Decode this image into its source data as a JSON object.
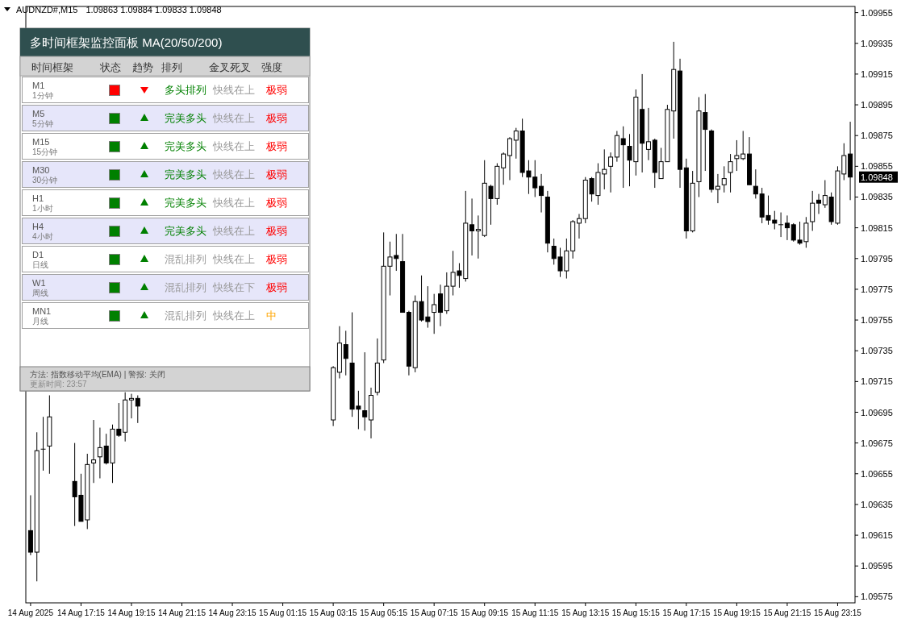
{
  "chart_data": {
    "type": "candlestick",
    "title": "AUDNZD#,M15",
    "subtitle": "1.09863 1.09884 1.09833 1.09848",
    "categories": [
      "14 Aug 2025",
      null,
      null,
      null,
      null,
      null,
      null,
      null,
      "14 Aug 17:15",
      null,
      null,
      null,
      null,
      null,
      null,
      null,
      "14 Aug 19:15",
      null,
      null,
      null,
      null,
      null,
      null,
      null,
      "14 Aug 21:15",
      null,
      null,
      null,
      null,
      null,
      null,
      null,
      "14 Aug 23:15",
      null,
      null,
      null,
      null,
      null,
      null,
      null,
      "15 Aug 01:15",
      null,
      null,
      null,
      null,
      null,
      null,
      null,
      "15 Aug 03:15",
      null,
      null,
      null,
      null,
      null,
      null,
      null,
      "15 Aug 05:15",
      null,
      null,
      null,
      null,
      null,
      null,
      null,
      "15 Aug 07:15",
      null,
      null,
      null,
      null,
      null,
      null,
      null,
      "15 Aug 09:15",
      null,
      null,
      null,
      null,
      null,
      null,
      null,
      "15 Aug 11:15",
      null,
      null,
      null,
      null,
      null,
      null,
      null,
      "15 Aug 13:15",
      null,
      null,
      null,
      null,
      null,
      null,
      null,
      "15 Aug 15:15",
      null,
      null,
      null,
      null,
      null,
      null,
      null,
      "15 Aug 17:15",
      null,
      null,
      null,
      null,
      null,
      null,
      null,
      "15 Aug 19:15",
      null,
      null,
      null,
      null,
      null,
      null,
      null,
      "15 Aug 21:15",
      null,
      null,
      null,
      null,
      null,
      null,
      null,
      "15 Aug 23:15",
      null,
      null
    ],
    "ohlc": [
      [
        1.09618,
        1.09641,
        1.09602,
        1.09604
      ],
      [
        1.09604,
        1.09682,
        1.09585,
        1.0967
      ],
      [
        1.09671,
        1.09692,
        1.09657,
        1.09671
      ],
      [
        1.09673,
        1.09706,
        1.09655,
        1.09692
      ],
      null,
      null,
      null,
      [
        1.0965,
        1.09675,
        1.09621,
        1.0964
      ],
      [
        1.09641,
        1.09655,
        1.09624,
        1.09624
      ],
      [
        1.09625,
        1.09668,
        1.09619,
        1.09661
      ],
      [
        1.09662,
        1.0969,
        1.09649,
        1.09664
      ],
      [
        1.09666,
        1.09685,
        1.09652,
        1.09672
      ],
      [
        1.09673,
        1.09681,
        1.09661,
        1.09662
      ],
      [
        1.09662,
        1.09687,
        1.09649,
        1.09684
      ],
      [
        1.09684,
        1.09701,
        1.09679,
        1.0968
      ],
      [
        1.09682,
        1.09708,
        1.09676,
        1.09703
      ],
      [
        1.09703,
        1.09707,
        1.09691,
        1.09704
      ],
      [
        1.09704,
        1.09706,
        1.09688,
        1.09699
      ],
      null,
      null,
      null,
      null,
      null,
      null,
      null,
      null,
      null,
      null,
      null,
      null,
      null,
      null,
      null,
      null,
      null,
      null,
      null,
      null,
      null,
      null,
      null,
      null,
      null,
      null,
      null,
      null,
      null,
      null,
      [
        1.0969,
        1.09725,
        1.09686,
        1.09724
      ],
      [
        1.09721,
        1.09751,
        1.09717,
        1.0974
      ],
      [
        1.09739,
        1.09748,
        1.09719,
        1.0973
      ],
      [
        1.09727,
        1.0976,
        1.09692,
        1.09697
      ],
      [
        1.09699,
        1.09709,
        1.09684,
        1.09697
      ],
      [
        1.09696,
        1.09734,
        1.09683,
        1.09692
      ],
      [
        1.0969,
        1.09711,
        1.09678,
        1.09706
      ],
      [
        1.09708,
        1.09743,
        1.09706,
        1.09727
      ],
      [
        1.09729,
        1.09812,
        1.09727,
        1.0979
      ],
      [
        1.0979,
        1.09806,
        1.09771,
        1.09796
      ],
      [
        1.09797,
        1.09811,
        1.09787,
        1.09795
      ],
      [
        1.09793,
        1.09811,
        1.0976,
        1.0976
      ],
      [
        1.0976,
        1.09761,
        1.09719,
        1.09725
      ],
      [
        1.09724,
        1.09771,
        1.09721,
        1.09767
      ],
      [
        1.09767,
        1.09784,
        1.09754,
        1.09755
      ],
      [
        1.09757,
        1.09777,
        1.0975,
        1.09754
      ],
      [
        1.0976,
        1.09772,
        1.09746,
        1.09765
      ],
      [
        1.09772,
        1.09778,
        1.09751,
        1.0976
      ],
      [
        1.09761,
        1.09786,
        1.09759,
        1.09777
      ],
      [
        1.09777,
        1.098,
        1.09771,
        1.09786
      ],
      [
        1.09787,
        1.09792,
        1.09776,
        1.09784
      ],
      [
        1.09782,
        1.09839,
        1.0978,
        1.09818
      ],
      [
        1.09817,
        1.09834,
        1.09797,
        1.09813
      ],
      [
        1.09813,
        1.09823,
        1.09795,
        1.09814
      ],
      [
        1.0981,
        1.09859,
        1.09809,
        1.09844
      ],
      [
        1.09842,
        1.09843,
        1.09817,
        1.09834
      ],
      [
        1.09834,
        1.09857,
        1.0983,
        1.09855
      ],
      [
        1.09854,
        1.09864,
        1.09843,
        1.09863
      ],
      [
        1.09862,
        1.09874,
        1.09846,
        1.09873
      ],
      [
        1.09872,
        1.0988,
        1.0986,
        1.09878
      ],
      [
        1.09878,
        1.09886,
        1.09848,
        1.09851
      ],
      [
        1.09852,
        1.09859,
        1.09837,
        1.09848
      ],
      [
        1.09848,
        1.09859,
        1.09835,
        1.09841
      ],
      [
        1.09842,
        1.0985,
        1.09825,
        1.09836
      ],
      [
        1.09835,
        1.09839,
        1.09799,
        1.09805
      ],
      [
        1.09803,
        1.09808,
        1.09791,
        1.09795
      ],
      [
        1.09796,
        1.09802,
        1.09783,
        1.09787
      ],
      [
        1.09787,
        1.09808,
        1.09782,
        1.098
      ],
      [
        1.098,
        1.0982,
        1.09795,
        1.09819
      ],
      [
        1.09818,
        1.09824,
        1.09808,
        1.09821
      ],
      [
        1.09821,
        1.09848,
        1.09818,
        1.09846
      ],
      [
        1.09847,
        1.09848,
        1.09832,
        1.09837
      ],
      [
        1.09836,
        1.09857,
        1.0983,
        1.09851
      ],
      [
        1.0985,
        1.09866,
        1.0984,
        1.09853
      ],
      [
        1.09855,
        1.09864,
        1.09838,
        1.09861
      ],
      [
        1.09861,
        1.09878,
        1.09858,
        1.09875
      ],
      [
        1.09873,
        1.09881,
        1.09841,
        1.09869
      ],
      [
        1.09868,
        1.09876,
        1.09842,
        1.09859
      ],
      [
        1.09858,
        1.09905,
        1.09849,
        1.099
      ],
      [
        1.09892,
        1.09915,
        1.09851,
        1.0987
      ],
      [
        1.09866,
        1.09893,
        1.09859,
        1.09871
      ],
      [
        1.09872,
        1.09873,
        1.09841,
        1.09851
      ],
      [
        1.09847,
        1.09867,
        1.09847,
        1.09858
      ],
      [
        1.09858,
        1.09895,
        1.09858,
        1.09892
      ],
      [
        1.09891,
        1.09936,
        1.09873,
        1.09918
      ],
      [
        1.09917,
        1.09925,
        1.09841,
        1.09853
      ],
      [
        1.09854,
        1.0986,
        1.09808,
        1.09813
      ],
      [
        1.09813,
        1.09852,
        1.09812,
        1.09844
      ],
      [
        1.09845,
        1.099,
        1.09835,
        1.09891
      ],
      [
        1.0989,
        1.09902,
        1.09852,
        1.09879
      ],
      [
        1.09878,
        1.09879,
        1.09838,
        1.0984
      ],
      [
        1.0984,
        1.0985,
        1.09831,
        1.09842
      ],
      [
        1.09843,
        1.09855,
        1.09838,
        1.09847
      ],
      [
        1.09851,
        1.09863,
        1.09838,
        1.09858
      ],
      [
        1.0986,
        1.09872,
        1.09852,
        1.09862
      ],
      [
        1.0986,
        1.09878,
        1.09859,
        1.09863
      ],
      [
        1.09863,
        1.09874,
        1.09843,
        1.09843
      ],
      [
        1.09842,
        1.09853,
        1.09834,
        1.09837
      ],
      [
        1.09837,
        1.09841,
        1.09818,
        1.09822
      ],
      [
        1.09823,
        1.09836,
        1.09817,
        1.0982
      ],
      [
        1.0982,
        1.09826,
        1.09814,
        1.09818
      ],
      [
        1.09817,
        1.09825,
        1.09809,
        1.09817
      ],
      [
        1.09818,
        1.09823,
        1.09807,
        1.09815
      ],
      [
        1.09817,
        1.09818,
        1.09806,
        1.09807
      ],
      [
        1.09807,
        1.09819,
        1.09804,
        1.09805
      ],
      [
        1.09806,
        1.09822,
        1.09802,
        1.09818
      ],
      [
        1.09819,
        1.09839,
        1.09813,
        1.09831
      ],
      [
        1.09833,
        1.09837,
        1.09824,
        1.09831
      ],
      [
        1.0983,
        1.09846,
        1.09828,
        1.09836
      ],
      [
        1.09835,
        1.09838,
        1.09817,
        1.09819
      ],
      [
        1.09818,
        1.09855,
        1.09817,
        1.09852
      ],
      [
        1.0985,
        1.0987,
        1.09846,
        1.09862
      ],
      [
        1.09863,
        1.09884,
        1.09833,
        1.09848
      ]
    ],
    "ylim": [
      1.09571,
      1.09959
    ],
    "yticks": [
      1.09575,
      1.09595,
      1.09615,
      1.09635,
      1.09655,
      1.09675,
      1.09695,
      1.09715,
      1.09735,
      1.09755,
      1.09775,
      1.09795,
      1.09815,
      1.09835,
      1.09855,
      1.09875,
      1.09895,
      1.09915,
      1.09935,
      1.09955
    ],
    "annotations": [
      "多时间框架监控面板 MA(20/50/200)",
      "时间框架",
      "状态",
      "趋势",
      "排列",
      "金叉死叉",
      "强度",
      "M1",
      "1分钟",
      "多头排列",
      "快线在上",
      "极弱",
      "M5",
      "5分钟",
      "完美多头",
      "快线在上",
      "极弱",
      "M15",
      "15分钟",
      "完美多头",
      "快线在上",
      "极弱",
      "M30",
      "30分钟",
      "完美多头",
      "快线在上",
      "极弱",
      "H1",
      "1小时",
      "完美多头",
      "快线在上",
      "极弱",
      "H4",
      "4小时",
      "完美多头",
      "快线在上",
      "极弱",
      "D1",
      "日线",
      "混乱排列",
      "快线在上",
      "极弱",
      "W1",
      "周线",
      "混乱排列",
      "快线在下",
      "极弱",
      "MN1",
      "月线",
      "混乱排列",
      "快线在上",
      "中",
      "方法: 指数移动平均(EMA) | 警报: 关闭",
      "更新时间: 23:57",
      "1.09848"
    ],
    "grid": false
  }
}
